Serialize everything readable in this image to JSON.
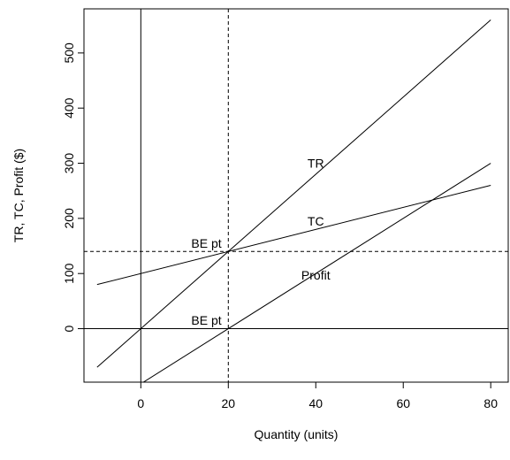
{
  "chart_data": {
    "type": "line",
    "title": "",
    "xlabel": "Quantity (units)",
    "ylabel": "TR, TC, Profit ($)",
    "xlim": [
      -13,
      84
    ],
    "ylim": [
      -97,
      580
    ],
    "xticks": [
      0,
      20,
      40,
      60,
      80
    ],
    "yticks": [
      0,
      100,
      200,
      300,
      400,
      500
    ],
    "grid": false,
    "series": [
      {
        "name": "TR",
        "x": [
          -10,
          80
        ],
        "y": [
          -70,
          560
        ]
      },
      {
        "name": "TC",
        "x": [
          -10,
          80
        ],
        "y": [
          80,
          260
        ]
      },
      {
        "name": "Profit",
        "x": [
          -10,
          80
        ],
        "y": [
          -150,
          300
        ]
      }
    ],
    "reference_lines": {
      "vertical_solid": 0,
      "horizontal_solid": 0,
      "vertical_dashed": 20,
      "horizontal_dashed": 140
    },
    "annotations": [
      {
        "text": "TR",
        "x": 40,
        "y": 300
      },
      {
        "text": "TC",
        "x": 40,
        "y": 195
      },
      {
        "text": "Profit",
        "x": 40,
        "y": 97
      },
      {
        "text": "BE pt",
        "x": 15,
        "y": 155
      },
      {
        "text": "BE pt",
        "x": 15,
        "y": 15
      }
    ]
  }
}
